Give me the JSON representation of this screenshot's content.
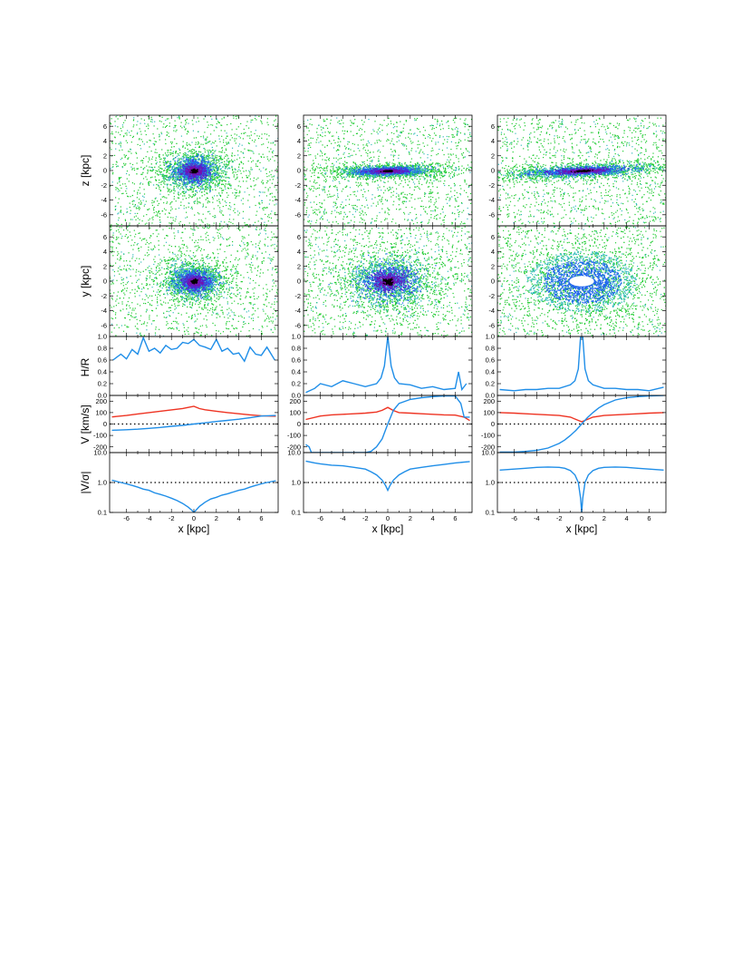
{
  "labels": {
    "z_axis": "z [kpc]",
    "y_axis": "y [kpc]",
    "hr_axis": "H/R",
    "v_axis": "V [km/s]",
    "ratio_axis": "|V/σ|",
    "x_axis": "x  [kpc]"
  },
  "colors": {
    "series_blue": "#1f8ee8",
    "series_red": "#ee3322",
    "dotted_reference": "#000000",
    "density_scale": [
      "#22cc33",
      "#33bbbb",
      "#2266ee",
      "#5522cc",
      "#7711aa",
      "#000000"
    ]
  },
  "chart_data": [
    {
      "type": "scatter",
      "panel": "z-x projection",
      "column": 1,
      "xlim": [
        -7.5,
        7.5
      ],
      "ylim": [
        -7.5,
        7.5
      ],
      "y_ticks": [
        6,
        4,
        2,
        0,
        -2,
        -4,
        -6
      ],
      "ylabel": "z [kpc]",
      "density_core": {
        "x": 0,
        "y": 0,
        "width_kpc": 6.0,
        "height_kpc": 5.5,
        "tilt_deg": 0,
        "ring": false
      }
    },
    {
      "type": "scatter",
      "panel": "z-x projection",
      "column": 2,
      "xlim": [
        -7.5,
        7.5
      ],
      "ylim": [
        -7.5,
        7.5
      ],
      "y_ticks": [
        6,
        4,
        2,
        0,
        -2,
        -4,
        -6
      ],
      "density_core": {
        "x": 0,
        "y": 0,
        "width_kpc": 9.5,
        "height_kpc": 1.8,
        "tilt_deg": 2,
        "ring": false
      }
    },
    {
      "type": "scatter",
      "panel": "z-x projection",
      "column": 3,
      "xlim": [
        -7.5,
        7.5
      ],
      "ylim": [
        -7.5,
        7.5
      ],
      "y_ticks": [
        6,
        4,
        2,
        0,
        -2,
        -4,
        -6
      ],
      "density_core": {
        "x": 0,
        "y": 0,
        "width_kpc": 15,
        "height_kpc": 2.0,
        "tilt_deg": 4,
        "ring": false
      }
    },
    {
      "type": "scatter",
      "panel": "y-x projection",
      "column": 1,
      "xlim": [
        -7.5,
        7.5
      ],
      "ylim": [
        -7.5,
        7.5
      ],
      "y_ticks": [
        6,
        4,
        2,
        0,
        -2,
        -4,
        -6
      ],
      "ylabel": "y [kpc]",
      "density_core": {
        "x": 0,
        "y": 0,
        "width_kpc": 6.0,
        "height_kpc": 5.5,
        "tilt_deg": 0,
        "ring": false
      }
    },
    {
      "type": "scatter",
      "panel": "y-x projection",
      "column": 2,
      "xlim": [
        -7.5,
        7.5
      ],
      "ylim": [
        -7.5,
        7.5
      ],
      "y_ticks": [
        6,
        4,
        2,
        0,
        -2,
        -4,
        -6
      ],
      "density_core": {
        "x": 0,
        "y": 0,
        "width_kpc": 9.0,
        "height_kpc": 8.5,
        "tilt_deg": 0,
        "ring": false
      }
    },
    {
      "type": "scatter",
      "panel": "y-x projection",
      "column": 3,
      "xlim": [
        -7.5,
        7.5
      ],
      "ylim": [
        -7.5,
        7.5
      ],
      "y_ticks": [
        6,
        4,
        2,
        0,
        -2,
        -4,
        -6
      ],
      "density_core": {
        "x": 0,
        "y": 0,
        "width_kpc": 13,
        "height_kpc": 11,
        "tilt_deg": 0,
        "ring": true
      }
    },
    {
      "type": "line",
      "panel": "H/R profile",
      "column": 1,
      "xlim": [
        -7.5,
        7.5
      ],
      "ylim": [
        0,
        1.0
      ],
      "y_ticks": [
        1.0,
        0.8,
        0.6,
        0.4,
        0.2,
        0.0
      ],
      "ylabel": "H/R",
      "series": [
        {
          "color": "series_blue",
          "x": [
            -7.2,
            -6.5,
            -6.0,
            -5.5,
            -5.0,
            -4.5,
            -4.0,
            -3.5,
            -3.0,
            -2.5,
            -2.0,
            -1.5,
            -1.0,
            -0.5,
            0.0,
            0.5,
            1.0,
            1.5,
            2.0,
            2.5,
            3.0,
            3.5,
            4.0,
            4.5,
            5.0,
            5.5,
            6.0,
            6.5,
            7.2
          ],
          "y": [
            0.6,
            0.7,
            0.62,
            0.78,
            0.7,
            0.98,
            0.75,
            0.8,
            0.72,
            0.85,
            0.78,
            0.8,
            0.9,
            0.88,
            0.95,
            0.85,
            0.82,
            0.78,
            0.95,
            0.75,
            0.8,
            0.7,
            0.72,
            0.58,
            0.82,
            0.7,
            0.68,
            0.82,
            0.6
          ]
        }
      ]
    },
    {
      "type": "line",
      "panel": "H/R profile",
      "column": 2,
      "xlim": [
        -7.5,
        7.5
      ],
      "ylim": [
        0,
        1.0
      ],
      "y_ticks": [
        1.0,
        0.8,
        0.6,
        0.4,
        0.2,
        0.0
      ],
      "series": [
        {
          "color": "series_blue",
          "x": [
            -7.3,
            -6.5,
            -6.0,
            -5.0,
            -4.0,
            -3.0,
            -2.0,
            -1.0,
            -0.6,
            -0.3,
            0.0,
            0.3,
            0.6,
            1.0,
            2.0,
            3.0,
            4.0,
            5.0,
            6.0,
            6.3,
            6.6,
            7.0
          ],
          "y": [
            0.05,
            0.12,
            0.2,
            0.15,
            0.25,
            0.2,
            0.15,
            0.2,
            0.3,
            0.5,
            1.0,
            0.5,
            0.3,
            0.2,
            0.18,
            0.12,
            0.15,
            0.1,
            0.12,
            0.4,
            0.1,
            0.2
          ]
        }
      ]
    },
    {
      "type": "line",
      "panel": "H/R profile",
      "column": 3,
      "xlim": [
        -7.5,
        7.5
      ],
      "ylim": [
        0,
        1.0
      ],
      "y_ticks": [
        1.0,
        0.8,
        0.6,
        0.4,
        0.2,
        0.0
      ],
      "series": [
        {
          "color": "series_blue",
          "x": [
            -7.3,
            -6.0,
            -5.0,
            -4.0,
            -3.0,
            -2.0,
            -1.0,
            -0.6,
            -0.3,
            -0.1,
            0.1,
            0.3,
            0.6,
            1.0,
            2.0,
            3.0,
            4.0,
            5.0,
            6.0,
            7.3
          ],
          "y": [
            0.1,
            0.08,
            0.1,
            0.1,
            0.12,
            0.12,
            0.18,
            0.25,
            0.45,
            1.0,
            1.0,
            0.45,
            0.25,
            0.18,
            0.12,
            0.12,
            0.1,
            0.1,
            0.08,
            0.14
          ]
        }
      ]
    },
    {
      "type": "line",
      "panel": "velocity profile",
      "column": 1,
      "xlim": [
        -7.5,
        7.5
      ],
      "ylim": [
        -250,
        250
      ],
      "y_ticks": [
        200,
        100,
        0,
        -100,
        -200
      ],
      "ylabel": "V [km/s]",
      "reference_line": 0,
      "series": [
        {
          "color": "series_red",
          "x": [
            -7.3,
            -6.0,
            -5.0,
            -4.0,
            -3.0,
            -2.0,
            -1.0,
            -0.5,
            0.0,
            0.5,
            1.0,
            2.0,
            3.0,
            4.0,
            5.0,
            6.0,
            7.3
          ],
          "y": [
            62,
            75,
            88,
            100,
            112,
            124,
            136,
            145,
            155,
            135,
            125,
            112,
            100,
            90,
            80,
            72,
            68
          ]
        },
        {
          "color": "series_blue",
          "x": [
            -7.3,
            -6.0,
            -5.0,
            -4.0,
            -3.0,
            -2.0,
            -1.0,
            0.0,
            1.0,
            2.0,
            3.0,
            4.0,
            5.0,
            6.0,
            7.3
          ],
          "y": [
            -55,
            -50,
            -45,
            -38,
            -30,
            -20,
            -12,
            0,
            10,
            22,
            32,
            42,
            55,
            70,
            75
          ]
        }
      ]
    },
    {
      "type": "line",
      "panel": "velocity profile",
      "column": 2,
      "xlim": [
        -7.5,
        7.5
      ],
      "ylim": [
        -250,
        250
      ],
      "y_ticks": [
        200,
        100,
        0,
        -100,
        -200
      ],
      "reference_line": 0,
      "series": [
        {
          "color": "series_red",
          "x": [
            -7.3,
            -6.0,
            -5.0,
            -4.0,
            -3.0,
            -2.0,
            -1.0,
            -0.5,
            0.0,
            0.5,
            1.0,
            2.0,
            3.0,
            4.0,
            5.0,
            6.0,
            6.8,
            7.3
          ],
          "y": [
            40,
            70,
            80,
            85,
            90,
            95,
            105,
            120,
            145,
            118,
            100,
            95,
            90,
            85,
            80,
            78,
            60,
            30
          ]
        },
        {
          "color": "series_blue",
          "x": [
            -7.3,
            -7.0,
            -6.8,
            -6.5,
            -6.0,
            -5.0,
            -4.0,
            -3.0,
            -2.0,
            -1.5,
            -1.0,
            -0.5,
            0.0,
            0.5,
            1.0,
            2.0,
            3.0,
            4.0,
            5.0,
            6.0,
            6.5,
            6.8,
            7.3
          ],
          "y": [
            -180,
            -200,
            -250,
            -250,
            -250,
            -250,
            -250,
            -250,
            -250,
            -240,
            -200,
            -130,
            0,
            120,
            180,
            215,
            230,
            240,
            245,
            245,
            180,
            60,
            60
          ]
        }
      ]
    },
    {
      "type": "line",
      "panel": "velocity profile",
      "column": 3,
      "xlim": [
        -7.5,
        7.5
      ],
      "ylim": [
        -250,
        250
      ],
      "y_ticks": [
        200,
        100,
        0,
        -100,
        -200
      ],
      "reference_line": 0,
      "series": [
        {
          "color": "series_red",
          "x": [
            -7.3,
            -6.0,
            -5.0,
            -4.0,
            -3.0,
            -2.0,
            -1.0,
            -0.5,
            0.0,
            0.5,
            1.0,
            2.0,
            3.0,
            4.0,
            5.0,
            6.0,
            7.3
          ],
          "y": [
            100,
            95,
            90,
            85,
            80,
            75,
            60,
            40,
            20,
            40,
            60,
            75,
            80,
            85,
            90,
            95,
            100
          ]
        },
        {
          "color": "series_blue",
          "x": [
            -7.3,
            -6.0,
            -5.0,
            -4.0,
            -3.0,
            -2.0,
            -1.5,
            -1.0,
            -0.5,
            0.0,
            0.5,
            1.0,
            1.5,
            2.0,
            3.0,
            4.0,
            5.0,
            6.0,
            7.3
          ],
          "y": [
            -245,
            -245,
            -240,
            -230,
            -210,
            -170,
            -140,
            -100,
            -55,
            0,
            55,
            100,
            140,
            170,
            210,
            230,
            240,
            245,
            250
          ]
        }
      ]
    },
    {
      "type": "line",
      "panel": "|V/σ| profile",
      "column": 1,
      "xlim": [
        -7.5,
        7.5
      ],
      "ylim": [
        0.1,
        10.0
      ],
      "y_scale": "log",
      "y_ticks": [
        10.0,
        1.0,
        0.1
      ],
      "ylabel": "|V/σ|",
      "x_ticks": [
        -6,
        -4,
        -2,
        0,
        2,
        4,
        6
      ],
      "xlabel": "x  [kpc]",
      "reference_line": 1.0,
      "series": [
        {
          "color": "series_blue",
          "x": [
            -7.3,
            -6.5,
            -6.0,
            -5.5,
            -5.0,
            -4.5,
            -4.0,
            -3.5,
            -3.0,
            -2.5,
            -2.0,
            -1.5,
            -1.0,
            -0.5,
            -0.2,
            0.0,
            0.2,
            0.5,
            1.0,
            1.5,
            2.0,
            2.5,
            3.0,
            3.5,
            4.0,
            4.5,
            5.0,
            5.5,
            6.0,
            6.5,
            7.3
          ],
          "y": [
            1.2,
            1.0,
            0.9,
            0.8,
            0.7,
            0.6,
            0.55,
            0.45,
            0.4,
            0.35,
            0.3,
            0.25,
            0.2,
            0.15,
            0.12,
            0.1,
            0.12,
            0.16,
            0.22,
            0.28,
            0.32,
            0.38,
            0.42,
            0.48,
            0.55,
            0.6,
            0.7,
            0.8,
            0.9,
            1.0,
            1.15
          ]
        }
      ]
    },
    {
      "type": "line",
      "panel": "|V/σ| profile",
      "column": 2,
      "xlim": [
        -7.5,
        7.5
      ],
      "ylim": [
        0.1,
        10.0
      ],
      "y_scale": "log",
      "y_ticks": [
        10.0,
        1.0,
        0.1
      ],
      "x_ticks": [
        -6,
        -4,
        -2,
        0,
        2,
        4,
        6
      ],
      "xlabel": "x  [kpc]",
      "reference_line": 1.0,
      "series": [
        {
          "color": "series_blue",
          "x": [
            -7.3,
            -6.5,
            -6.0,
            -5.0,
            -4.0,
            -3.0,
            -2.0,
            -1.5,
            -1.0,
            -0.5,
            -0.2,
            0.0,
            0.2,
            0.5,
            1.0,
            1.5,
            2.0,
            3.0,
            4.0,
            5.0,
            6.0,
            7.3
          ],
          "y": [
            5.2,
            4.5,
            4.2,
            3.8,
            3.6,
            3.2,
            2.8,
            2.3,
            1.8,
            1.2,
            0.8,
            0.55,
            0.8,
            1.2,
            1.8,
            2.3,
            2.8,
            3.2,
            3.6,
            4.0,
            4.5,
            5.0
          ]
        }
      ]
    },
    {
      "type": "line",
      "panel": "|V/σ| profile",
      "column": 3,
      "xlim": [
        -7.5,
        7.5
      ],
      "ylim": [
        0.1,
        10.0
      ],
      "y_scale": "log",
      "y_ticks": [
        10.0,
        1.0,
        0.1
      ],
      "x_ticks": [
        -6,
        -4,
        -2,
        0,
        2,
        4,
        6
      ],
      "xlabel": "x  [kpc]",
      "reference_line": 1.0,
      "series": [
        {
          "color": "series_blue",
          "x": [
            -7.3,
            -6.0,
            -5.0,
            -4.0,
            -3.0,
            -2.0,
            -1.5,
            -1.0,
            -0.6,
            -0.3,
            -0.1,
            0.0,
            0.1,
            0.3,
            0.6,
            1.0,
            1.5,
            2.0,
            3.0,
            4.0,
            5.0,
            6.0,
            7.3
          ],
          "y": [
            2.6,
            2.8,
            3.0,
            3.2,
            3.3,
            3.2,
            3.0,
            2.5,
            1.8,
            1.0,
            0.3,
            0.1,
            0.3,
            1.0,
            1.8,
            2.5,
            3.0,
            3.2,
            3.3,
            3.2,
            3.0,
            2.8,
            2.6
          ]
        }
      ]
    }
  ]
}
